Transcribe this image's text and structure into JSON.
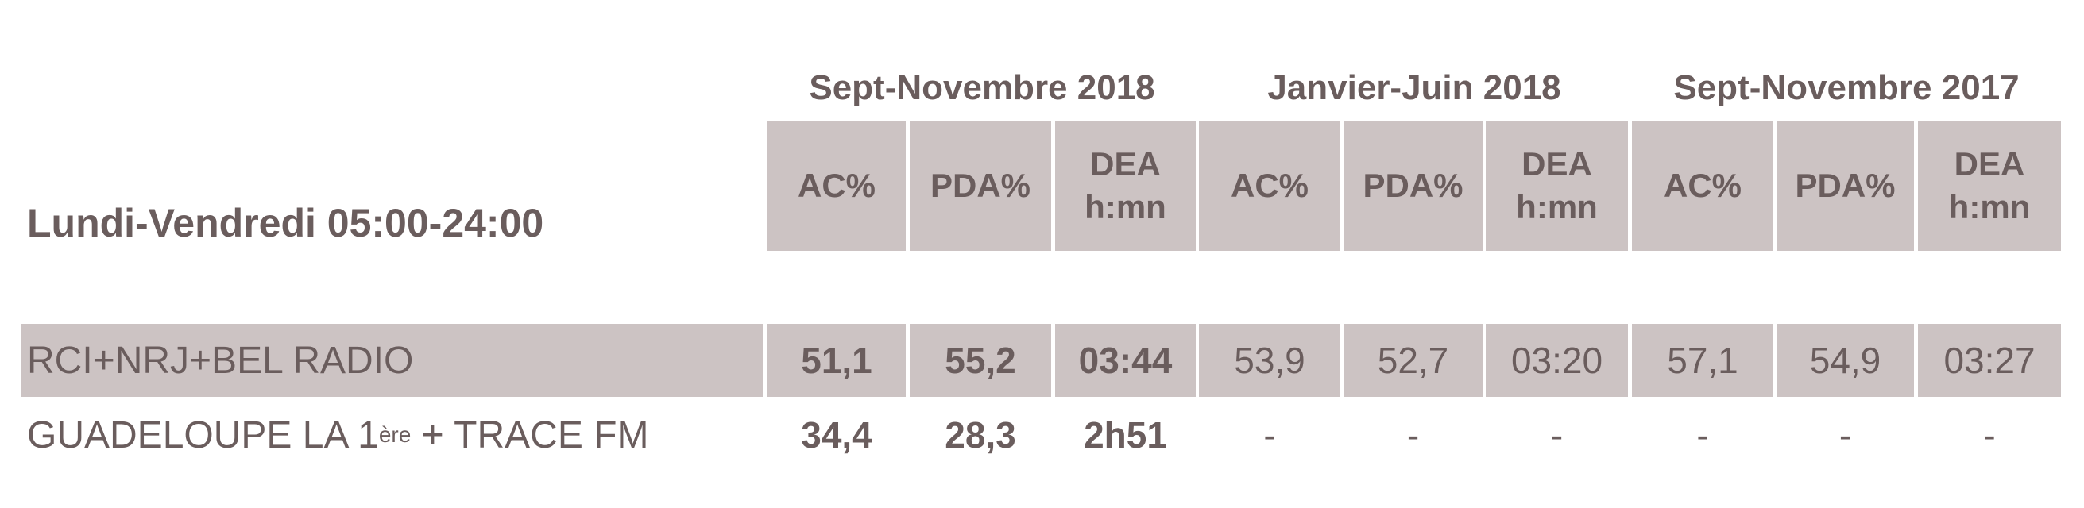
{
  "table": {
    "title": "Lundi-Vendredi 05:00-24:00",
    "periods": [
      "Sept-Novembre 2018",
      "Janvier-Juin 2018",
      "Sept-Novembre 2017"
    ],
    "columns": [
      "AC%",
      "PDA%",
      "DEA\nh:mn",
      "AC%",
      "PDA%",
      "DEA\nh:mn",
      "AC%",
      "PDA%",
      "DEA\nh:mn"
    ],
    "rows": [
      {
        "label": "RCI+NRJ+BEL RADIO",
        "values": [
          "51,1",
          "55,2",
          "03:44",
          "53,9",
          "52,7",
          "03:20",
          "57,1",
          "54,9",
          "03:27"
        ]
      },
      {
        "label_prefix": "GUADELOUPE LA 1",
        "label_sup": "ère",
        "label_suffix": " + TRACE FM",
        "values": [
          "34,4",
          "28,3",
          "2h51",
          "-",
          "-",
          "-",
          "-",
          "-",
          "-"
        ]
      }
    ],
    "colors": {
      "header_bg": "#ccc3c3",
      "text": "#6a5d5d"
    }
  }
}
